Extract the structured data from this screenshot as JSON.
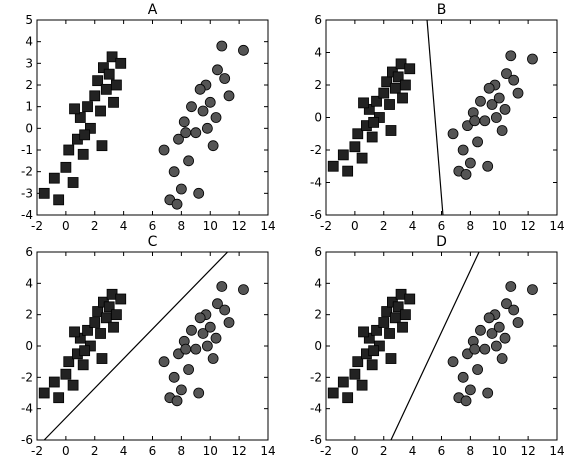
{
  "chart_data": [
    {
      "type": "scatter",
      "title": "A",
      "xlim": [
        -2,
        14
      ],
      "ylim": [
        -4,
        5
      ],
      "xticks": [
        -2,
        0,
        2,
        4,
        6,
        8,
        10,
        12,
        14
      ],
      "yticks": [
        -4,
        -3,
        -2,
        -1,
        0,
        1,
        2,
        3,
        4,
        5
      ],
      "series": [
        {
          "marker": "square",
          "color": "#222222",
          "x": [
            -1.5,
            -0.8,
            -0.5,
            0,
            0.2,
            0.5,
            0.8,
            1,
            1.2,
            1.5,
            1.7,
            2,
            2.2,
            2.4,
            2.6,
            2.8,
            3,
            3.2,
            3.5,
            3.8,
            1.3,
            0.6,
            2.5,
            3.3
          ],
          "y": [
            -3,
            -2.3,
            -3.3,
            -1.8,
            -1,
            -2.5,
            -0.5,
            0.5,
            -1.2,
            1,
            0,
            1.5,
            2.2,
            0.8,
            2.8,
            1.8,
            2.5,
            3.3,
            2,
            3,
            -0.3,
            0.9,
            -0.8,
            1.2
          ]
        },
        {
          "marker": "circle",
          "color": "#555555",
          "x": [
            6.8,
            7.2,
            7.5,
            7.8,
            8,
            8.2,
            8.5,
            8.7,
            9,
            9.2,
            9.5,
            9.7,
            10,
            10.2,
            10.5,
            10.8,
            11,
            11.3,
            12.3,
            8.3,
            9.3,
            10.4,
            7.7,
            9.8
          ],
          "y": [
            -1,
            -3.3,
            -2,
            -0.5,
            -2.8,
            0.3,
            -1.5,
            1,
            -0.2,
            -3,
            0.8,
            2,
            1.2,
            -0.8,
            2.7,
            3.8,
            2.3,
            1.5,
            3.6,
            -0.2,
            1.8,
            0.5,
            -3.5,
            0
          ]
        }
      ]
    },
    {
      "type": "scatter",
      "title": "B",
      "xlim": [
        -2,
        14
      ],
      "ylim": [
        -6,
        6
      ],
      "xticks": [
        -2,
        0,
        2,
        4,
        6,
        8,
        10,
        12,
        14
      ],
      "yticks": [
        -6,
        -4,
        -2,
        0,
        2,
        4,
        6
      ],
      "series": [
        {
          "marker": "square",
          "color": "#222222",
          "x": [
            -1.5,
            -0.8,
            -0.5,
            0,
            0.2,
            0.5,
            0.8,
            1,
            1.2,
            1.5,
            1.7,
            2,
            2.2,
            2.4,
            2.6,
            2.8,
            3,
            3.2,
            3.5,
            3.8,
            1.3,
            0.6,
            2.5,
            3.3
          ],
          "y": [
            -3,
            -2.3,
            -3.3,
            -1.8,
            -1,
            -2.5,
            -0.5,
            0.5,
            -1.2,
            1,
            0,
            1.5,
            2.2,
            0.8,
            2.8,
            1.8,
            2.5,
            3.3,
            2,
            3,
            -0.3,
            0.9,
            -0.8,
            1.2
          ]
        },
        {
          "marker": "circle",
          "color": "#555555",
          "x": [
            6.8,
            7.2,
            7.5,
            7.8,
            8,
            8.2,
            8.5,
            8.7,
            9,
            9.2,
            9.5,
            9.7,
            10,
            10.2,
            10.5,
            10.8,
            11,
            11.3,
            12.3,
            8.3,
            9.3,
            10.4,
            7.7,
            9.8
          ],
          "y": [
            -1,
            -3.3,
            -2,
            -0.5,
            -2.8,
            0.3,
            -1.5,
            1,
            -0.2,
            -3,
            0.8,
            2,
            1.2,
            -0.8,
            2.7,
            3.8,
            2.3,
            1.5,
            3.6,
            -0.2,
            1.8,
            0.5,
            -3.5,
            0
          ]
        }
      ],
      "line": {
        "x": [
          5,
          6.1
        ],
        "y": [
          6,
          -6
        ]
      }
    },
    {
      "type": "scatter",
      "title": "C",
      "xlim": [
        -2,
        14
      ],
      "ylim": [
        -6,
        6
      ],
      "xticks": [
        -2,
        0,
        2,
        4,
        6,
        8,
        10,
        12,
        14
      ],
      "yticks": [
        -6,
        -4,
        -2,
        0,
        2,
        4,
        6
      ],
      "series": [
        {
          "marker": "square",
          "color": "#222222",
          "x": [
            -1.5,
            -0.8,
            -0.5,
            0,
            0.2,
            0.5,
            0.8,
            1,
            1.2,
            1.5,
            1.7,
            2,
            2.2,
            2.4,
            2.6,
            2.8,
            3,
            3.2,
            3.5,
            3.8,
            1.3,
            0.6,
            2.5,
            3.3
          ],
          "y": [
            -3,
            -2.3,
            -3.3,
            -1.8,
            -1,
            -2.5,
            -0.5,
            0.5,
            -1.2,
            1,
            0,
            1.5,
            2.2,
            0.8,
            2.8,
            1.8,
            2.5,
            3.3,
            2,
            3,
            -0.3,
            0.9,
            -0.8,
            1.2
          ]
        },
        {
          "marker": "circle",
          "color": "#555555",
          "x": [
            6.8,
            7.2,
            7.5,
            7.8,
            8,
            8.2,
            8.5,
            8.7,
            9,
            9.2,
            9.5,
            9.7,
            10,
            10.2,
            10.5,
            10.8,
            11,
            11.3,
            12.3,
            8.3,
            9.3,
            10.4,
            7.7,
            9.8
          ],
          "y": [
            -1,
            -3.3,
            -2,
            -0.5,
            -2.8,
            0.3,
            -1.5,
            1,
            -0.2,
            -3,
            0.8,
            2,
            1.2,
            -0.8,
            2.7,
            3.8,
            2.3,
            1.5,
            3.6,
            -0.2,
            1.8,
            0.5,
            -3.5,
            0
          ]
        }
      ],
      "line": {
        "x": [
          -1.5,
          11.2
        ],
        "y": [
          -6,
          6
        ]
      }
    },
    {
      "type": "scatter",
      "title": "D",
      "xlim": [
        -2,
        14
      ],
      "ylim": [
        -6,
        6
      ],
      "xticks": [
        -2,
        0,
        2,
        4,
        6,
        8,
        10,
        12,
        14
      ],
      "yticks": [
        -6,
        -4,
        -2,
        0,
        2,
        4,
        6
      ],
      "series": [
        {
          "marker": "square",
          "color": "#222222",
          "x": [
            -1.5,
            -0.8,
            -0.5,
            0,
            0.2,
            0.5,
            0.8,
            1,
            1.2,
            1.5,
            1.7,
            2,
            2.2,
            2.4,
            2.6,
            2.8,
            3,
            3.2,
            3.5,
            3.8,
            1.3,
            0.6,
            2.5,
            3.3
          ],
          "y": [
            -3,
            -2.3,
            -3.3,
            -1.8,
            -1,
            -2.5,
            -0.5,
            0.5,
            -1.2,
            1,
            0,
            1.5,
            2.2,
            0.8,
            2.8,
            1.8,
            2.5,
            3.3,
            2,
            3,
            -0.3,
            0.9,
            -0.8,
            1.2
          ]
        },
        {
          "marker": "circle",
          "color": "#555555",
          "x": [
            6.8,
            7.2,
            7.5,
            7.8,
            8,
            8.2,
            8.5,
            8.7,
            9,
            9.2,
            9.5,
            9.7,
            10,
            10.2,
            10.5,
            10.8,
            11,
            11.3,
            12.3,
            8.3,
            9.3,
            10.4,
            7.7,
            9.8
          ],
          "y": [
            -1,
            -3.3,
            -2,
            -0.5,
            -2.8,
            0.3,
            -1.5,
            1,
            -0.2,
            -3,
            0.8,
            2,
            1.2,
            -0.8,
            2.7,
            3.8,
            2.3,
            1.5,
            3.6,
            -0.2,
            1.8,
            0.5,
            -3.5,
            0
          ]
        }
      ],
      "line": {
        "x": [
          2.5,
          8.6
        ],
        "y": [
          -6,
          6
        ]
      }
    }
  ]
}
